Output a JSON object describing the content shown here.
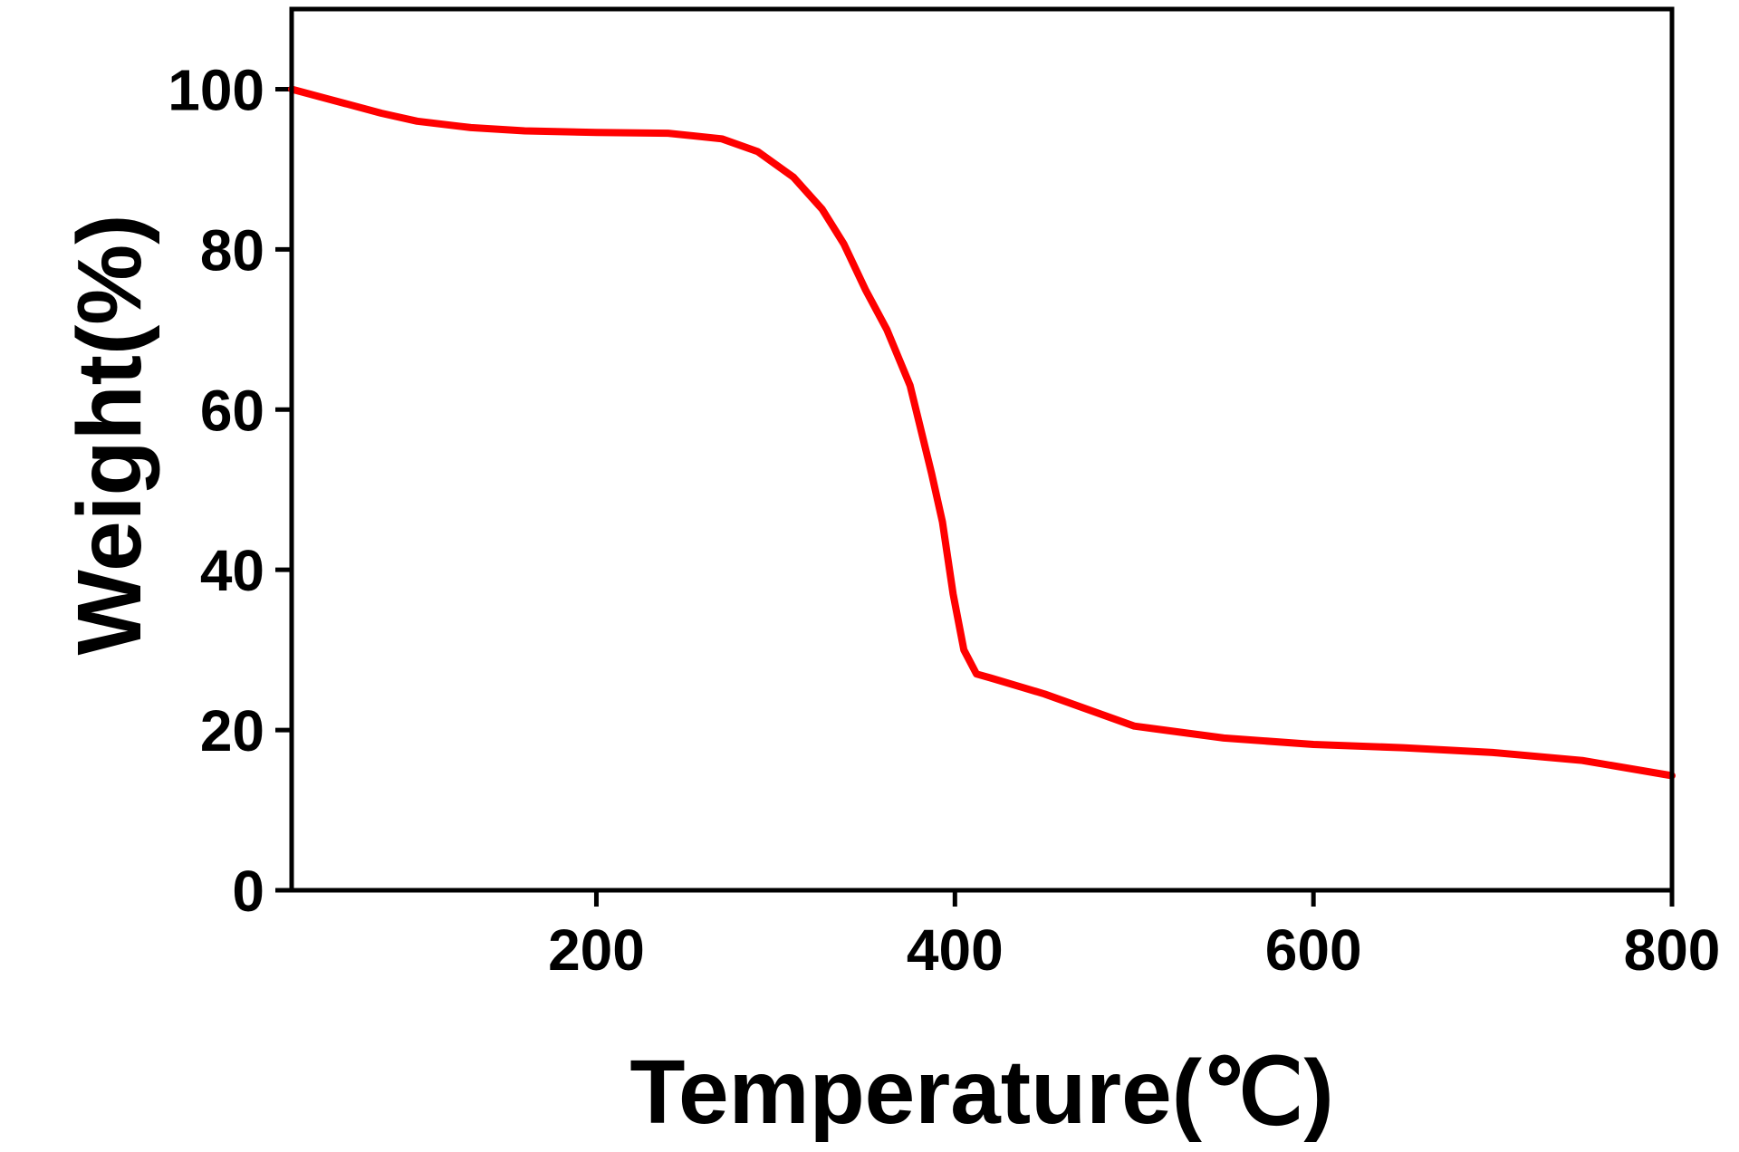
{
  "chart_data": {
    "type": "line",
    "x_label": "Temperature(℃)",
    "y_label": "Weight(%)",
    "xlim": [
      30,
      800
    ],
    "ylim": [
      0,
      110
    ],
    "xticks": [
      200,
      400,
      600,
      800
    ],
    "yticks": [
      0,
      20,
      40,
      60,
      80,
      100
    ],
    "series": [
      {
        "color": "#ff0000",
        "x": [
          30,
          50,
          80,
          100,
          130,
          160,
          200,
          240,
          270,
          290,
          310,
          326,
          338,
          350,
          362,
          375,
          387,
          393,
          399,
          405,
          412,
          420,
          450,
          500,
          550,
          600,
          650,
          700,
          750,
          800
        ],
        "values": [
          100,
          98.8,
          97,
          96,
          95.2,
          94.8,
          94.6,
          94.5,
          93.8,
          92.2,
          89,
          85,
          80.7,
          75,
          70,
          63,
          52,
          46,
          37,
          30,
          27,
          26.5,
          24.5,
          20.5,
          19,
          18.2,
          17.8,
          17.2,
          16.2,
          14.3
        ]
      }
    ]
  }
}
